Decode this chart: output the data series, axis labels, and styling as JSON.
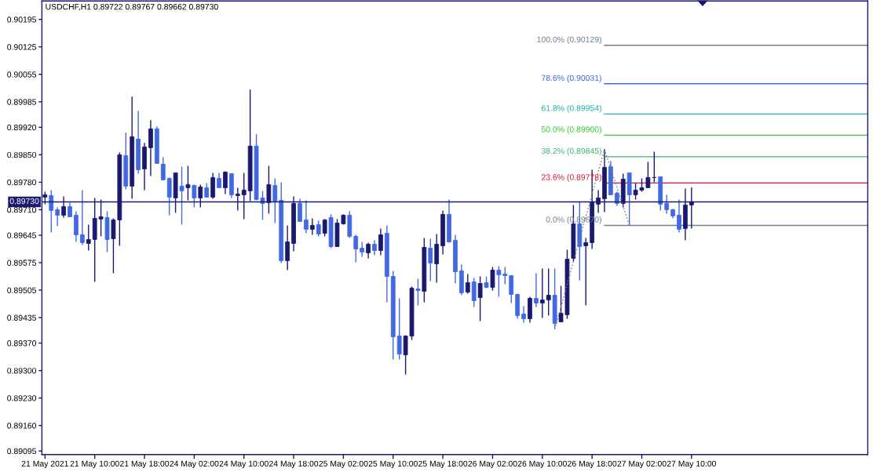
{
  "chart_data": {
    "type": "candlestick",
    "title": "USDCHF,H1 0.89722 0.89767 0.89662 0.89730",
    "categories": [
      "21 May 2021",
      null,
      null,
      null,
      null,
      null,
      null,
      null,
      "21 May 10:00",
      null,
      null,
      null,
      null,
      null,
      null,
      null,
      "21 May 18:00",
      null,
      null,
      null,
      null,
      null,
      null,
      null,
      "24 May 02:00",
      null,
      null,
      null,
      null,
      null,
      null,
      null,
      "24 May 10:00",
      null,
      null,
      null,
      null,
      null,
      null,
      null,
      "24 May 18:00",
      null,
      null,
      null,
      null,
      null,
      null,
      null,
      "25 May 02:00",
      null,
      null,
      null,
      null,
      null,
      null,
      null,
      "25 May 10:00",
      null,
      null,
      null,
      null,
      null,
      null,
      null,
      "25 May 18:00",
      null,
      null,
      null,
      null,
      null,
      null,
      null,
      "26 May 02:00",
      null,
      null,
      null,
      null,
      null,
      null,
      null,
      "26 May 10:00",
      null,
      null,
      null,
      null,
      null,
      null,
      null,
      "26 May 18:00",
      null,
      null,
      null,
      null,
      null,
      null,
      null,
      "27 May 02:00",
      null,
      null,
      null,
      null,
      null,
      null,
      null,
      "27 May 10:00"
    ],
    "ohlc": [
      [
        0.89742,
        0.89756,
        0.89724,
        0.89748
      ],
      [
        0.89746,
        0.8976,
        0.89652,
        0.89708
      ],
      [
        0.8971,
        0.89716,
        0.89668,
        0.89696
      ],
      [
        0.89696,
        0.89744,
        0.8969,
        0.89718
      ],
      [
        0.89718,
        0.89728,
        0.89692,
        0.89692
      ],
      [
        0.89696,
        0.89706,
        0.89628,
        0.89646
      ],
      [
        0.89646,
        0.8976,
        0.8962,
        0.89626
      ],
      [
        0.89624,
        0.89672,
        0.89606,
        0.89634
      ],
      [
        0.89634,
        0.8974,
        0.89526,
        0.89688
      ],
      [
        0.89686,
        0.89736,
        0.89642,
        0.89692
      ],
      [
        0.8969,
        0.89706,
        0.89602,
        0.89634
      ],
      [
        0.89636,
        0.89688,
        0.89548,
        0.89684
      ],
      [
        0.89684,
        0.89856,
        0.89618,
        0.8985
      ],
      [
        0.89848,
        0.89906,
        0.89762,
        0.8977
      ],
      [
        0.8977,
        0.89998,
        0.89738,
        0.89896
      ],
      [
        0.8989,
        0.89962,
        0.89802,
        0.89812
      ],
      [
        0.89814,
        0.8988,
        0.8976,
        0.8987
      ],
      [
        0.89868,
        0.89938,
        0.89796,
        0.89916
      ],
      [
        0.89916,
        0.89922,
        0.89828,
        0.89828
      ],
      [
        0.89826,
        0.89844,
        0.89786,
        0.89786
      ],
      [
        0.8979,
        0.89792,
        0.89696,
        0.89742
      ],
      [
        0.8974,
        0.89804,
        0.89702,
        0.89804
      ],
      [
        0.8977,
        0.8982,
        0.89672,
        0.89758
      ],
      [
        0.89766,
        0.89822,
        0.89734,
        0.89774
      ],
      [
        0.89772,
        0.89774,
        0.89716,
        0.8974
      ],
      [
        0.8974,
        0.89774,
        0.89716,
        0.89768
      ],
      [
        0.89766,
        0.89778,
        0.89742,
        0.89742
      ],
      [
        0.89742,
        0.89804,
        0.89738,
        0.89792
      ],
      [
        0.8979,
        0.89804,
        0.89766,
        0.89766
      ],
      [
        0.89766,
        0.89808,
        0.8975,
        0.89806
      ],
      [
        0.89802,
        0.89802,
        0.8974,
        0.89748
      ],
      [
        0.89746,
        0.89766,
        0.89708,
        0.8975
      ],
      [
        0.89748,
        0.89804,
        0.89686,
        0.8976
      ],
      [
        0.89758,
        0.90016,
        0.89732,
        0.89872
      ],
      [
        0.89872,
        0.89902,
        0.89734,
        0.89736
      ],
      [
        0.8974,
        0.89758,
        0.89684,
        0.89726
      ],
      [
        0.89728,
        0.89822,
        0.897,
        0.89774
      ],
      [
        0.89772,
        0.8979,
        0.89676,
        0.89732
      ],
      [
        0.89734,
        0.8978,
        0.89574,
        0.8958
      ],
      [
        0.8958,
        0.8967,
        0.89556,
        0.89628
      ],
      [
        0.89624,
        0.89744,
        0.89604,
        0.89726
      ],
      [
        0.89726,
        0.89738,
        0.8968,
        0.8968
      ],
      [
        0.89684,
        0.89734,
        0.8965,
        0.8966
      ],
      [
        0.8966,
        0.89688,
        0.89646,
        0.8967
      ],
      [
        0.89672,
        0.89682,
        0.89642,
        0.89648
      ],
      [
        0.8965,
        0.89686,
        0.89642,
        0.89684
      ],
      [
        0.8969,
        0.89698,
        0.89612,
        0.89616
      ],
      [
        0.89616,
        0.89686,
        0.89616,
        0.89676
      ],
      [
        0.89674,
        0.89698,
        0.89672,
        0.89696
      ],
      [
        0.89696,
        0.89706,
        0.89638,
        0.89642
      ],
      [
        0.89642,
        0.89646,
        0.89576,
        0.8961
      ],
      [
        0.89612,
        0.89628,
        0.8959,
        0.89602
      ],
      [
        0.896,
        0.89626,
        0.89586,
        0.89622
      ],
      [
        0.89622,
        0.89632,
        0.89594,
        0.89606
      ],
      [
        0.89606,
        0.89662,
        0.89594,
        0.89646
      ],
      [
        0.8965,
        0.8967,
        0.89474,
        0.8954
      ],
      [
        0.8954,
        0.89554,
        0.89328,
        0.89386
      ],
      [
        0.89388,
        0.89484,
        0.89328,
        0.89342
      ],
      [
        0.8934,
        0.8939,
        0.8929,
        0.89388
      ],
      [
        0.89388,
        0.89514,
        0.89378,
        0.8951
      ],
      [
        0.89508,
        0.89534,
        0.89466,
        0.89504
      ],
      [
        0.89502,
        0.89638,
        0.89474,
        0.89614
      ],
      [
        0.89612,
        0.89636,
        0.89528,
        0.89574
      ],
      [
        0.89572,
        0.89648,
        0.89524,
        0.89622
      ],
      [
        0.89618,
        0.89708,
        0.89596,
        0.89698
      ],
      [
        0.89698,
        0.89736,
        0.89626,
        0.89628
      ],
      [
        0.89632,
        0.89646,
        0.89522,
        0.89552
      ],
      [
        0.89554,
        0.8957,
        0.89492,
        0.89498
      ],
      [
        0.895,
        0.89546,
        0.89496,
        0.89524
      ],
      [
        0.89526,
        0.89536,
        0.89462,
        0.89478
      ],
      [
        0.89486,
        0.8954,
        0.89426,
        0.89522
      ],
      [
        0.89524,
        0.8954,
        0.8951,
        0.89512
      ],
      [
        0.89512,
        0.89564,
        0.89504,
        0.89556
      ],
      [
        0.89556,
        0.89566,
        0.89488,
        0.89544
      ],
      [
        0.89546,
        0.89564,
        0.8952,
        0.89542
      ],
      [
        0.89542,
        0.89542,
        0.89472,
        0.89494
      ],
      [
        0.89494,
        0.89496,
        0.89432,
        0.8944
      ],
      [
        0.89444,
        0.89464,
        0.89422,
        0.89432
      ],
      [
        0.89432,
        0.89488,
        0.89422,
        0.89484
      ],
      [
        0.89484,
        0.89548,
        0.89462,
        0.89472
      ],
      [
        0.89472,
        0.8956,
        0.89434,
        0.8948
      ],
      [
        0.8948,
        0.8956,
        0.8944,
        0.89492
      ],
      [
        0.89492,
        0.8956,
        0.89406,
        0.8942
      ],
      [
        0.89424,
        0.89516,
        0.89424,
        0.89446
      ],
      [
        0.89442,
        0.89608,
        0.89432,
        0.89584
      ],
      [
        0.89586,
        0.89722,
        0.89578,
        0.89674
      ],
      [
        0.89674,
        0.8973,
        0.8953,
        0.89616
      ],
      [
        0.89618,
        0.89638,
        0.89466,
        0.89626
      ],
      [
        0.89626,
        0.89812,
        0.8961,
        0.8973
      ],
      [
        0.89724,
        0.8976,
        0.89702,
        0.8974
      ],
      [
        0.89738,
        0.89864,
        0.89704,
        0.89818
      ],
      [
        0.8982,
        0.89834,
        0.89748,
        0.89748
      ],
      [
        0.89752,
        0.89756,
        0.8972,
        0.89726
      ],
      [
        0.89726,
        0.89802,
        0.89716,
        0.89788
      ],
      [
        0.89804,
        0.89804,
        0.8967,
        0.89748
      ],
      [
        0.89748,
        0.89778,
        0.89736,
        0.8976
      ],
      [
        0.8976,
        0.8979,
        0.89756,
        0.89766
      ],
      [
        0.89766,
        0.89832,
        0.89766,
        0.89792
      ],
      [
        0.89792,
        0.89858,
        0.8978,
        0.89792
      ],
      [
        0.89794,
        0.89794,
        0.89708,
        0.89724
      ],
      [
        0.89726,
        0.89748,
        0.897,
        0.8971
      ],
      [
        0.8971,
        0.89712,
        0.89688,
        0.89694
      ],
      [
        0.89696,
        0.89736,
        0.89652,
        0.8966
      ],
      [
        0.89662,
        0.89764,
        0.89632,
        0.89722
      ],
      [
        0.89722,
        0.89767,
        0.89662,
        0.8973
      ]
    ],
    "colors": [
      "#191970",
      "#4169e1",
      "#4169e1",
      "#191970",
      "#4169e1",
      "#4169e1",
      "#4169e1",
      "#191970",
      "#191970",
      "#191970",
      "#4169e1",
      "#191970",
      "#191970",
      "#4169e1",
      "#191970",
      "#4169e1",
      "#191970",
      "#191970",
      "#4169e1",
      "#4169e1",
      "#4169e1",
      "#191970",
      "#4169e1",
      "#191970",
      "#4169e1",
      "#191970",
      "#4169e1",
      "#191970",
      "#4169e1",
      "#191970",
      "#4169e1",
      "#191970",
      "#191970",
      "#191970",
      "#4169e1",
      "#4169e1",
      "#191970",
      "#4169e1",
      "#4169e1",
      "#191970",
      "#191970",
      "#4169e1",
      "#4169e1",
      "#191970",
      "#4169e1",
      "#191970",
      "#4169e1",
      "#191970",
      "#191970",
      "#4169e1",
      "#4169e1",
      "#4169e1",
      "#191970",
      "#4169e1",
      "#191970",
      "#4169e1",
      "#4169e1",
      "#4169e1",
      "#191970",
      "#191970",
      "#4169e1",
      "#191970",
      "#4169e1",
      "#191970",
      "#191970",
      "#4169e1",
      "#4169e1",
      "#4169e1",
      "#191970",
      "#4169e1",
      "#191970",
      "#4169e1",
      "#191970",
      "#4169e1",
      "#4169e1",
      "#4169e1",
      "#4169e1",
      "#4169e1",
      "#191970",
      "#4169e1",
      "#191970",
      "#191970",
      "#4169e1",
      "#191970",
      "#191970",
      "#191970",
      "#4169e1",
      "#191970",
      "#191970",
      "#191970",
      "#191970",
      "#4169e1",
      "#4169e1",
      "#191970",
      "#4169e1",
      "#191970",
      "#191970",
      "#191970",
      "#191970",
      "#4169e1",
      "#4169e1",
      "#4169e1",
      "#4169e1",
      "#191970",
      "#191970"
    ],
    "series": [
      {
        "type": "line",
        "color": "#808080",
        "line_style": "dotted",
        "values": [
          null,
          null,
          null,
          null,
          null,
          null,
          null,
          null,
          null,
          null,
          null,
          null,
          null,
          null,
          null,
          null,
          null,
          null,
          null,
          null,
          null,
          null,
          null,
          null,
          null,
          null,
          null,
          null,
          null,
          null,
          null,
          null,
          null,
          null,
          null,
          null,
          null,
          null,
          null,
          null,
          null,
          null,
          null,
          null,
          null,
          null,
          null,
          null,
          null,
          null,
          null,
          null,
          null,
          null,
          null,
          null,
          null,
          null,
          null,
          null,
          null,
          null,
          null,
          null,
          null,
          null,
          null,
          null,
          null,
          null,
          null,
          null,
          null,
          null,
          null,
          null,
          null,
          null,
          null,
          null,
          null,
          null,
          0.89406,
          null,
          null,
          null,
          null,
          null,
          null,
          null,
          0.89864,
          null,
          null,
          null,
          0.8967,
          null,
          null,
          null,
          null,
          null,
          null,
          null,
          null,
          null,
          null
        ]
      }
    ],
    "ylim": [
      0.89086,
      0.90242
    ],
    "yticks": [
      0.90195,
      0.90125,
      0.90055,
      0.89985,
      {
        "value": 0.8992,
        "label": "0.89920"
      },
      {
        "value": 0.8985,
        "label": "0.89850"
      },
      {
        "value": 0.8978,
        "label": "0.89780"
      },
      {
        "value": 0.8971,
        "label": "0.89710"
      },
      0.89645,
      0.89575,
      0.89505,
      0.89435,
      {
        "value": 0.8937,
        "label": "0.89370"
      },
      {
        "value": 0.893,
        "label": "0.89300"
      },
      {
        "value": 0.8923,
        "label": "0.89230"
      },
      {
        "value": 0.8916,
        "label": "0.89160"
      },
      0.89095
    ],
    "ref_lines": [
      {
        "axis": "y",
        "value": 0.8973,
        "label": "0.89730",
        "color": "#191970"
      },
      {
        "axis": "y",
        "value": 0.90129,
        "label": "100.0% (0.90129)",
        "color": "#708090"
      },
      {
        "axis": "y",
        "value": 0.90031,
        "label": "78.6% (0.90031)",
        "color": "#4169e1"
      },
      {
        "axis": "y",
        "value": 0.89954,
        "label": "61.8% (0.89954)",
        "color": "#20b2aa"
      },
      {
        "axis": "y",
        "value": 0.899,
        "label": "50.0% (0.89900)",
        "color": "#32cd32"
      },
      {
        "axis": "y",
        "value": 0.89845,
        "label": "38.2% (0.89845)",
        "color": "#3cb371"
      },
      {
        "axis": "y",
        "value": 0.89778,
        "label": "23.6% (0.89778)",
        "color": "#dc143c"
      },
      {
        "axis": "y",
        "value": 0.8967,
        "label": "0.0% (0.89670)",
        "color": "#708090"
      }
    ]
  }
}
